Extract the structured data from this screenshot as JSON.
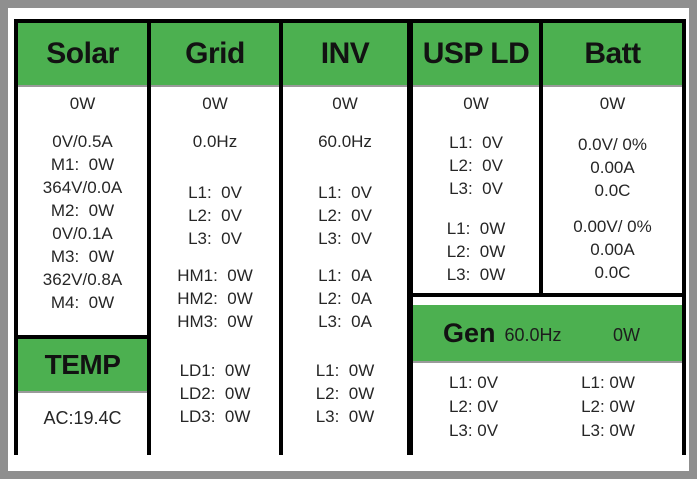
{
  "colors": {
    "header_green": "#4cb050",
    "frame_gray": "#8f8f8f",
    "border_black": "#000000",
    "text": "#262626"
  },
  "columns": {
    "solar": {
      "title": "Solar",
      "power": "0W",
      "rows": [
        "0V/0.5A",
        "M1:  0W",
        "364V/0.0A",
        "M2:  0W",
        "0V/0.1A",
        "M3:  0W",
        "362V/0.8A",
        "M4:  0W"
      ]
    },
    "temp": {
      "title": "TEMP",
      "value": "AC:19.4C"
    },
    "grid": {
      "title": "Grid",
      "power": "0W",
      "freq": "0.0Hz",
      "voltage_rows": [
        "L1:  0V",
        "L2:  0V",
        "L3:  0V"
      ],
      "hm_rows": [
        "HM1:  0W",
        "HM2:  0W",
        "HM3:  0W"
      ],
      "ld_rows": [
        "LD1:  0W",
        "LD2:  0W",
        "LD3:  0W"
      ]
    },
    "inv": {
      "title": "INV",
      "power": "0W",
      "freq": "60.0Hz",
      "voltage_rows": [
        "L1:  0V",
        "L2:  0V",
        "L3:  0V"
      ],
      "current_rows": [
        "L1:  0A",
        "L2:  0A",
        "L3:  0A"
      ],
      "power_rows": [
        "L1:  0W",
        "L2:  0W",
        "L3:  0W"
      ]
    },
    "usp_ld": {
      "title": "USP LD",
      "power": "0W",
      "voltage_rows": [
        "L1:  0V",
        "L2:  0V",
        "L3:  0V"
      ],
      "power_rows": [
        "L1:  0W",
        "L2:  0W",
        "L3:  0W"
      ]
    },
    "batt": {
      "title": "Batt",
      "power": "0W",
      "bank1": [
        "0.0V/ 0%",
        "0.00A",
        "0.0C"
      ],
      "bank2": [
        "0.00V/ 0%",
        "0.00A",
        "0.0C"
      ]
    },
    "gen": {
      "title": "Gen",
      "freq": "60.0Hz",
      "power": "0W",
      "voltage_rows": [
        "L1: 0V",
        "L2: 0V",
        "L3: 0V"
      ],
      "power_rows": [
        "L1: 0W",
        "L2: 0W",
        "L3: 0W"
      ]
    }
  }
}
